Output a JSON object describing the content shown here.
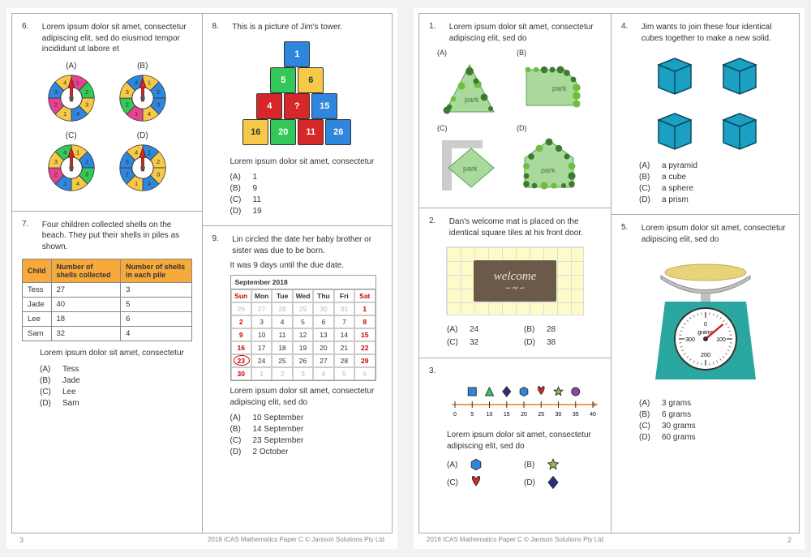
{
  "footer_text": "2018 ICAS Mathematics Paper C © Janison Solutions Pty Ltd",
  "page_left_num": "3",
  "page_right_num": "2",
  "q6": {
    "num": "6.",
    "text": "Lorem ipsum dolor sit amet, consectetur adipiscing elit, sed do eiusmod tempor incididunt ut labore et",
    "labels": [
      "(A)",
      "(B)",
      "(C)",
      "(D)"
    ],
    "spinners": {
      "type": "spinner-wheel",
      "segments": 8,
      "inner_radius": 14,
      "outer_radius": 30,
      "stroke": "#333",
      "arrow_color": "#d62828",
      "colors_A": [
        "#e84393",
        "#34c759",
        "#f7c948",
        "#2e86de",
        "#f7c948",
        "#e84393",
        "#2e86de",
        "#f7c948"
      ],
      "colors_B": [
        "#f7c948",
        "#2e86de",
        "#2e86de",
        "#f7c948",
        "#e84393",
        "#34c759",
        "#f7c948",
        "#2e86de"
      ],
      "colors_C": [
        "#f7c948",
        "#2e86de",
        "#34c759",
        "#f7c948",
        "#2e86de",
        "#e84393",
        "#f7c948",
        "#34c759"
      ],
      "colors_D": [
        "#2e86de",
        "#f7c948",
        "#f7c948",
        "#2e86de",
        "#f7c948",
        "#2e86de",
        "#2e86de",
        "#f7c948"
      ],
      "seg_labels": [
        "1",
        "2",
        "3",
        "4",
        "1",
        "2",
        "3",
        "4"
      ]
    }
  },
  "q7": {
    "num": "7.",
    "text": "Four children collected shells on the beach. They put their shells in piles as shown.",
    "table": {
      "headers": [
        "Child",
        "Number of shells collected",
        "Number of shells  in each pile"
      ],
      "rows": [
        [
          "Tess",
          "27",
          "3"
        ],
        [
          "Jade",
          "40",
          "5"
        ],
        [
          "Lee",
          "18",
          "6"
        ],
        [
          "Sam",
          "32",
          "4"
        ]
      ]
    },
    "subtext": "Lorem ipsum dolor sit amet, consectetur",
    "options": [
      [
        "(A)",
        "Tess"
      ],
      [
        "(B)",
        "Jade"
      ],
      [
        "(C)",
        "Lee"
      ],
      [
        "(D)",
        "Sam"
      ]
    ]
  },
  "q8": {
    "num": "8.",
    "text": "This is a picture of Jim's tower.",
    "tower": {
      "type": "pyramid-cubes",
      "rows": [
        [
          {
            "v": "1",
            "c": "#2e86de"
          }
        ],
        [
          {
            "v": "5",
            "c": "#34c759"
          },
          {
            "v": "6",
            "c": "#f7c948",
            "fg": "#333"
          }
        ],
        [
          {
            "v": "4",
            "c": "#d62828"
          },
          {
            "v": "?",
            "c": "#d62828"
          },
          {
            "v": "15",
            "c": "#2e86de"
          }
        ],
        [
          {
            "v": "16",
            "c": "#f7c948",
            "fg": "#333"
          },
          {
            "v": "20",
            "c": "#34c759"
          },
          {
            "v": "11",
            "c": "#d62828"
          },
          {
            "v": "26",
            "c": "#2e86de"
          }
        ]
      ]
    },
    "subtext": "Lorem ipsum dolor sit amet, consectetur",
    "options": [
      [
        "(A)",
        "1"
      ],
      [
        "(B)",
        "9"
      ],
      [
        "(C)",
        "11"
      ],
      [
        "(D)",
        "19"
      ]
    ]
  },
  "q9": {
    "num": "9.",
    "text": "Lin circled the date her baby brother or sister was due to be born.",
    "line2": "It was 9 days until the due date.",
    "calendar": {
      "title": "September 2018",
      "days": [
        "Sun",
        "Mon",
        "Tue",
        "Wed",
        "Thu",
        "Fri",
        "Sat"
      ],
      "weekend_cols": [
        0,
        6
      ],
      "cells": [
        {
          "t": "26",
          "dim": true
        },
        {
          "t": "27",
          "dim": true
        },
        {
          "t": "28",
          "dim": true
        },
        {
          "t": "29",
          "dim": true
        },
        {
          "t": "30",
          "dim": true
        },
        {
          "t": "31",
          "dim": true
        },
        {
          "t": "1",
          "red": true
        },
        {
          "t": "2",
          "red": true
        },
        {
          "t": "3"
        },
        {
          "t": "4"
        },
        {
          "t": "5"
        },
        {
          "t": "6"
        },
        {
          "t": "7"
        },
        {
          "t": "8",
          "red": true
        },
        {
          "t": "9",
          "red": true
        },
        {
          "t": "10"
        },
        {
          "t": "11"
        },
        {
          "t": "12"
        },
        {
          "t": "13"
        },
        {
          "t": "14"
        },
        {
          "t": "15",
          "red": true
        },
        {
          "t": "16",
          "red": true
        },
        {
          "t": "17"
        },
        {
          "t": "18"
        },
        {
          "t": "19"
        },
        {
          "t": "20"
        },
        {
          "t": "21"
        },
        {
          "t": "22",
          "red": true
        },
        {
          "t": "23",
          "red": true,
          "circled": true
        },
        {
          "t": "24"
        },
        {
          "t": "25"
        },
        {
          "t": "26"
        },
        {
          "t": "27"
        },
        {
          "t": "28"
        },
        {
          "t": "29",
          "red": true
        },
        {
          "t": "30",
          "red": true
        },
        {
          "t": "1",
          "dim": true
        },
        {
          "t": "2",
          "dim": true
        },
        {
          "t": "3",
          "dim": true
        },
        {
          "t": "4",
          "dim": true
        },
        {
          "t": "5",
          "dim": true
        },
        {
          "t": "6",
          "dim": true
        }
      ]
    },
    "subtext": "Lorem ipsum dolor sit amet, consectetur adipiscing elit, sed do",
    "options": [
      [
        "(A)",
        "10 September"
      ],
      [
        "(B)",
        "14 September"
      ],
      [
        "(C)",
        "23 September"
      ],
      [
        "(D)",
        "2 October"
      ]
    ]
  },
  "q1": {
    "num": "1.",
    "text": "Lorem ipsum dolor sit amet, consectetur adipiscing elit, sed do",
    "labels": [
      "(A)",
      "(B)",
      "(C)",
      "(D)"
    ],
    "park_label": "park",
    "park_fill": "#a9d99b",
    "park_stroke": "#5aa05a",
    "foliage": "#3c7a2e",
    "foliage2": "#6fbf3f",
    "road": "#cccccc"
  },
  "q2": {
    "num": "2.",
    "text": "Dan's welcome mat is placed on the identical square tiles at his front door.",
    "mat_text": "welcome",
    "options": [
      [
        "(A)",
        "24"
      ],
      [
        "(B)",
        "28"
      ],
      [
        "(C)",
        "32"
      ],
      [
        "(D)",
        "38"
      ]
    ]
  },
  "q3": {
    "num": "3.",
    "nline": {
      "type": "number-line",
      "min": 0,
      "max": 40,
      "step": 5,
      "ticks": [
        "0",
        "5",
        "10",
        "15",
        "20",
        "25",
        "30",
        "35",
        "40"
      ],
      "markers": [
        {
          "x": 5,
          "shape": "square",
          "c": "#2e86de"
        },
        {
          "x": 10,
          "shape": "triangle",
          "c": "#34c759"
        },
        {
          "x": 15,
          "shape": "diamond",
          "c": "#2b2e7a"
        },
        {
          "x": 20,
          "shape": "hexagon",
          "c": "#2e86de"
        },
        {
          "x": 25,
          "shape": "heart",
          "c": "#d62828"
        },
        {
          "x": 30,
          "shape": "star",
          "c": "#8bc34a"
        },
        {
          "x": 35,
          "shape": "circle",
          "c": "#8e44ad"
        }
      ],
      "line_color": "#e67e22"
    },
    "subtext": "Lorem ipsum dolor sit amet, consectetur adipiscing elit, sed do",
    "options": [
      "(A)",
      "(B)",
      "(C)",
      "(D)"
    ],
    "opt_shapes": [
      {
        "shape": "hexagon",
        "c": "#2e86de"
      },
      {
        "shape": "star",
        "c": "#8bc34a"
      },
      {
        "shape": "heart",
        "c": "#d62828"
      },
      {
        "shape": "diamond",
        "c": "#2b2e7a"
      }
    ]
  },
  "q4": {
    "num": "4.",
    "text": "Jim wants to join these four identical cubes together to make a new solid.",
    "cube_color": "#1ba0c4",
    "cube_stroke": "#0b4b5e",
    "options": [
      [
        "(A)",
        "a pyramid"
      ],
      [
        "(B)",
        "a cube"
      ],
      [
        "(C)",
        "a sphere"
      ],
      [
        "(D)",
        "a prism"
      ]
    ]
  },
  "q5": {
    "num": "5.",
    "text": "Lorem ipsum dolor sit amet, consectetur adipiscing elit, sed do",
    "scale": {
      "bowl_color": "#c0c0c0",
      "bowl_content": "#e8d37a",
      "base_color": "#2aa7a0",
      "dial_labels": [
        "0",
        "100",
        "200",
        "300"
      ],
      "dial_unit": "grams",
      "needle_angle_deg": 50,
      "needle_color": "#d62828"
    },
    "options": [
      [
        "(A)",
        "3 grams"
      ],
      [
        "(B)",
        "6 grams"
      ],
      [
        "(C)",
        "30 grams"
      ],
      [
        "(D)",
        "60 grams"
      ]
    ]
  }
}
